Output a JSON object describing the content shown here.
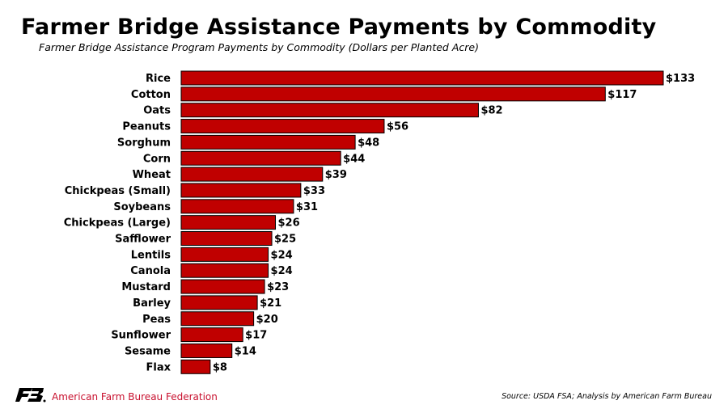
{
  "header": {
    "title": "Farmer Bridge Assistance Payments by Commodity",
    "subtitle": "Farmer Bridge Assistance Program Payments by Commodity (Dollars per Planted Acre)"
  },
  "footer": {
    "organization": "American Farm Bureau Federation",
    "source": "Source: USDA FSA; Analysis by American Farm Bureau",
    "logo_icon": "afbf-logo-icon",
    "brand_color": "#C8102E"
  },
  "chart_data": {
    "type": "bar",
    "orientation": "horizontal",
    "title": "Farmer Bridge Assistance Payments by Commodity",
    "subtitle": "Farmer Bridge Assistance Program Payments by Commodity (Dollars per Planted Acre)",
    "categories": [
      "Rice",
      "Cotton",
      "Oats",
      "Peanuts",
      "Sorghum",
      "Corn",
      "Wheat",
      "Chickpeas (Small)",
      "Soybeans",
      "Chickpeas (Large)",
      "Safflower",
      "Lentils",
      "Canola",
      "Mustard",
      "Barley",
      "Peas",
      "Sunflower",
      "Sesame",
      "Flax"
    ],
    "values": [
      133,
      117,
      82,
      56,
      48,
      44,
      39,
      33,
      31,
      26,
      25,
      24,
      24,
      23,
      21,
      20,
      17,
      14,
      8
    ],
    "value_labels": [
      "$133",
      "$117",
      "$82",
      "$56",
      "$48",
      "$44",
      "$39",
      "$33",
      "$31",
      "$26",
      "$25",
      "$24",
      "$24",
      "$23",
      "$21",
      "$20",
      "$17",
      "$14",
      "$8"
    ],
    "bar_color": "#C00000",
    "xlim": [
      0,
      133
    ],
    "grid": false,
    "legend": "none"
  }
}
